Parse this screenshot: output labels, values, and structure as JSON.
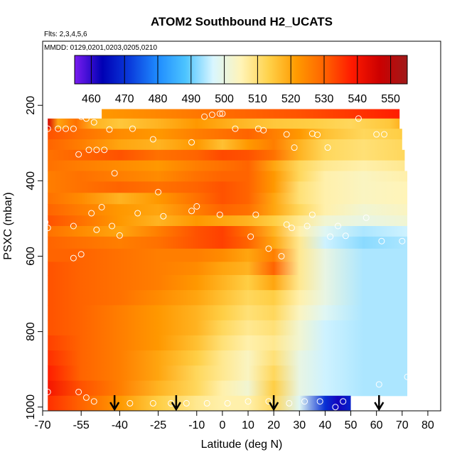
{
  "chart_data": {
    "type": "heatmap",
    "title": "ATOM2 Southbound H2_UCATS",
    "subtitle_flights": "Flts: 2,3,4,5,6",
    "subtitle_dates": "MMDD: 0129,0201,0203,0205,0210",
    "xlabel": "Latitude (deg N)",
    "ylabel": "PSXC (mbar)",
    "xlim": [
      -70,
      85
    ],
    "ylim": [
      1010,
      30
    ],
    "x_ticks": [
      -70,
      -55,
      -40,
      -25,
      -10,
      0,
      10,
      20,
      30,
      40,
      50,
      60,
      70,
      80
    ],
    "y_ticks": [
      200,
      400,
      600,
      800,
      1000
    ],
    "colorbar": {
      "min": 455,
      "max": 555,
      "ticks": [
        460,
        470,
        480,
        490,
        500,
        510,
        520,
        530,
        540,
        550
      ],
      "colors": [
        "#7a1cf0",
        "#0000b4",
        "#0a3cdc",
        "#1f8cff",
        "#4cc4ff",
        "#d9f6ff",
        "#fff4b8",
        "#ffd24a",
        "#ff9a00",
        "#ff6400",
        "#ff1a00",
        "#cc0000",
        "#a01a1a"
      ]
    },
    "arrow_latitudes": [
      -42,
      -18,
      20,
      61
    ],
    "layers": [
      {
        "p_top": 210,
        "p_bottom": 235,
        "x_start": -47,
        "x_end": 69,
        "lat": [
          -47,
          -30,
          -10,
          10,
          30,
          50,
          69
        ],
        "values": [
          522,
          524,
          527,
          530,
          532,
          535,
          538
        ]
      },
      {
        "p_top": 235,
        "p_bottom": 262,
        "x_start": -68,
        "x_end": 69,
        "lat": [
          -68,
          -64,
          -57,
          -50,
          -40,
          -25,
          -10,
          5,
          20,
          35,
          50,
          65,
          69
        ],
        "values": [
          545,
          520,
          528,
          518,
          515,
          518,
          522,
          518,
          515,
          514,
          512,
          515,
          518
        ]
      },
      {
        "p_top": 262,
        "p_bottom": 290,
        "x_start": -68,
        "x_end": 70,
        "lat": [
          -68,
          -55,
          -40,
          -25,
          -10,
          0,
          10,
          20,
          30,
          40,
          55,
          70
        ],
        "values": [
          532,
          528,
          524,
          522,
          526,
          528,
          530,
          526,
          522,
          516,
          512,
          514
        ]
      },
      {
        "p_top": 290,
        "p_bottom": 318,
        "x_start": -68,
        "x_end": 70,
        "lat": [
          -68,
          -55,
          -40,
          -25,
          -10,
          0,
          10,
          20,
          30,
          40,
          55,
          70
        ],
        "values": [
          530,
          526,
          520,
          518,
          522,
          516,
          522,
          526,
          518,
          512,
          510,
          512
        ]
      },
      {
        "p_top": 318,
        "p_bottom": 346,
        "x_start": -68,
        "x_end": 71,
        "lat": [
          -68,
          -55,
          -40,
          -25,
          -10,
          0,
          10,
          20,
          30,
          40,
          55,
          71
        ],
        "values": [
          528,
          530,
          532,
          528,
          530,
          533,
          532,
          528,
          518,
          512,
          510,
          512
        ]
      },
      {
        "p_top": 346,
        "p_bottom": 374,
        "x_start": -68,
        "x_end": 71,
        "lat": [
          -68,
          -55,
          -40,
          -25,
          -10,
          0,
          10,
          20,
          30,
          40,
          55,
          71
        ],
        "values": [
          528,
          526,
          524,
          522,
          526,
          528,
          530,
          520,
          512,
          508,
          506,
          508
        ]
      },
      {
        "p_top": 374,
        "p_bottom": 402,
        "x_start": -68,
        "x_end": 72,
        "lat": [
          -68,
          -55,
          -40,
          -25,
          -10,
          0,
          10,
          20,
          30,
          40,
          55,
          72
        ],
        "values": [
          526,
          528,
          526,
          524,
          528,
          530,
          530,
          522,
          512,
          506,
          504,
          506
        ]
      },
      {
        "p_top": 402,
        "p_bottom": 432,
        "x_start": -68,
        "x_end": 72,
        "lat": [
          -68,
          -55,
          -40,
          -25,
          -10,
          0,
          10,
          20,
          30,
          40,
          55,
          72
        ],
        "values": [
          526,
          528,
          530,
          528,
          530,
          532,
          530,
          522,
          510,
          506,
          504,
          505
        ]
      },
      {
        "p_top": 432,
        "p_bottom": 462,
        "x_start": -68,
        "x_end": 72,
        "lat": [
          -68,
          -55,
          -40,
          -25,
          -10,
          0,
          10,
          20,
          30,
          40,
          55,
          72
        ],
        "values": [
          528,
          524,
          518,
          522,
          528,
          532,
          530,
          520,
          510,
          506,
          504,
          505
        ]
      },
      {
        "p_top": 462,
        "p_bottom": 492,
        "x_start": -68,
        "x_end": 72,
        "lat": [
          -68,
          -55,
          -40,
          -25,
          -10,
          0,
          10,
          20,
          30,
          40,
          55,
          72
        ],
        "values": [
          530,
          526,
          522,
          520,
          526,
          530,
          528,
          520,
          512,
          506,
          502,
          504
        ]
      },
      {
        "p_top": 492,
        "p_bottom": 520,
        "x_start": -68,
        "x_end": 72,
        "lat": [
          -68,
          -55,
          -40,
          -25,
          -10,
          0,
          10,
          20,
          30,
          40,
          55,
          72
        ],
        "values": [
          532,
          528,
          522,
          518,
          522,
          520,
          518,
          514,
          508,
          502,
          500,
          502
        ]
      },
      {
        "p_top": 520,
        "p_bottom": 548,
        "x_start": -68,
        "x_end": 72,
        "lat": [
          -68,
          -55,
          -40,
          -25,
          -10,
          0,
          10,
          20,
          30,
          40,
          55,
          72
        ],
        "values": [
          528,
          524,
          520,
          526,
          532,
          534,
          528,
          518,
          506,
          498,
          494,
          496
        ]
      },
      {
        "p_top": 548,
        "p_bottom": 580,
        "x_start": -68,
        "x_end": 72,
        "lat": [
          -68,
          -55,
          -40,
          -25,
          -10,
          0,
          10,
          20,
          30,
          40,
          55,
          72
        ],
        "values": [
          530,
          528,
          526,
          528,
          532,
          534,
          530,
          520,
          508,
          496,
          492,
          494
        ]
      },
      {
        "p_top": 580,
        "p_bottom": 615,
        "x_start": -68,
        "x_end": 72,
        "lat": [
          -68,
          -55,
          -40,
          -25,
          -10,
          0,
          10,
          20,
          30,
          40,
          55,
          72
        ],
        "values": [
          530,
          530,
          528,
          526,
          526,
          524,
          520,
          526,
          508,
          500,
          494,
          494
        ]
      },
      {
        "p_top": 615,
        "p_bottom": 650,
        "x_start": -68,
        "x_end": 72,
        "lat": [
          -68,
          -55,
          -40,
          -25,
          -10,
          0,
          10,
          20,
          30,
          40,
          55,
          72
        ],
        "values": [
          532,
          530,
          528,
          526,
          524,
          520,
          518,
          530,
          508,
          500,
          494,
          494
        ]
      },
      {
        "p_top": 650,
        "p_bottom": 690,
        "x_start": -68,
        "x_end": 72,
        "lat": [
          -68,
          -55,
          -40,
          -25,
          -10,
          0,
          10,
          20,
          30,
          40,
          55,
          72
        ],
        "values": [
          532,
          530,
          528,
          526,
          522,
          518,
          514,
          520,
          508,
          500,
          494,
          494
        ]
      },
      {
        "p_top": 690,
        "p_bottom": 730,
        "x_start": -68,
        "x_end": 72,
        "lat": [
          -68,
          -55,
          -40,
          -25,
          -10,
          0,
          10,
          20,
          30,
          40,
          55,
          72
        ],
        "values": [
          532,
          530,
          528,
          524,
          520,
          516,
          512,
          514,
          506,
          500,
          494,
          494
        ]
      },
      {
        "p_top": 730,
        "p_bottom": 770,
        "x_start": -68,
        "x_end": 72,
        "lat": [
          -68,
          -55,
          -40,
          -25,
          -10,
          0,
          10,
          20,
          30,
          40,
          55,
          72
        ],
        "values": [
          532,
          530,
          526,
          522,
          518,
          514,
          510,
          512,
          504,
          498,
          494,
          494
        ]
      },
      {
        "p_top": 770,
        "p_bottom": 810,
        "x_start": -68,
        "x_end": 72,
        "lat": [
          -68,
          -55,
          -40,
          -25,
          -10,
          0,
          10,
          20,
          30,
          40,
          55,
          72
        ],
        "values": [
          532,
          530,
          526,
          522,
          518,
          512,
          508,
          510,
          502,
          496,
          494,
          494
        ]
      },
      {
        "p_top": 810,
        "p_bottom": 850,
        "x_start": -68,
        "x_end": 72,
        "lat": [
          -68,
          -55,
          -40,
          -25,
          -10,
          0,
          10,
          20,
          30,
          40,
          55,
          72
        ],
        "values": [
          534,
          530,
          526,
          522,
          516,
          510,
          506,
          508,
          502,
          496,
          494,
          494
        ]
      },
      {
        "p_top": 850,
        "p_bottom": 890,
        "x_start": -68,
        "x_end": 72,
        "lat": [
          -68,
          -55,
          -40,
          -25,
          -10,
          0,
          10,
          20,
          30,
          40,
          55,
          72
        ],
        "values": [
          536,
          530,
          526,
          520,
          514,
          508,
          504,
          510,
          500,
          496,
          494,
          494
        ]
      },
      {
        "p_top": 890,
        "p_bottom": 930,
        "x_start": -68,
        "x_end": 72,
        "lat": [
          -68,
          -55,
          -40,
          -25,
          -10,
          0,
          10,
          20,
          30,
          40,
          55,
          72
        ],
        "values": [
          538,
          530,
          526,
          520,
          512,
          508,
          504,
          512,
          500,
          496,
          494,
          494
        ]
      },
      {
        "p_top": 930,
        "p_bottom": 970,
        "x_start": -68,
        "x_end": 72,
        "lat": [
          -68,
          -55,
          -40,
          -25,
          -10,
          0,
          10,
          20,
          30,
          40,
          55,
          72
        ],
        "values": [
          540,
          532,
          526,
          518,
          512,
          506,
          502,
          514,
          500,
          496,
          494,
          494
        ]
      },
      {
        "p_top": 970,
        "p_bottom": 1008,
        "x_start": -68,
        "x_end": 50,
        "lat": [
          -68,
          -55,
          -40,
          -25,
          -10,
          0,
          10,
          20,
          30,
          40,
          45,
          50
        ],
        "values": [
          536,
          530,
          522,
          514,
          508,
          506,
          506,
          512,
          498,
          470,
          462,
          468
        ]
      }
    ],
    "points": [
      {
        "lat": -68,
        "p": 262
      },
      {
        "lat": -64,
        "p": 262
      },
      {
        "lat": -61,
        "p": 262
      },
      {
        "lat": -58,
        "p": 262
      },
      {
        "lat": -55,
        "p": 230
      },
      {
        "lat": -53,
        "p": 235
      },
      {
        "lat": -51,
        "p": 200
      },
      {
        "lat": -48,
        "p": 200
      },
      {
        "lat": -45,
        "p": 200
      },
      {
        "lat": -50,
        "p": 245
      },
      {
        "lat": -35,
        "p": 262
      },
      {
        "lat": -44,
        "p": 264
      },
      {
        "lat": -27,
        "p": 290
      },
      {
        "lat": -12,
        "p": 298
      },
      {
        "lat": -7,
        "p": 230
      },
      {
        "lat": -4,
        "p": 225
      },
      {
        "lat": -1,
        "p": 222
      },
      {
        "lat": 0,
        "p": 222
      },
      {
        "lat": 5,
        "p": 262
      },
      {
        "lat": 14,
        "p": 262
      },
      {
        "lat": 16,
        "p": 266
      },
      {
        "lat": 25,
        "p": 277
      },
      {
        "lat": 35,
        "p": 275
      },
      {
        "lat": 37,
        "p": 278
      },
      {
        "lat": 28,
        "p": 312
      },
      {
        "lat": 41,
        "p": 312
      },
      {
        "lat": 60,
        "p": 277
      },
      {
        "lat": 63,
        "p": 277
      },
      {
        "lat": 66,
        "p": 200
      },
      {
        "lat": 68,
        "p": 200
      },
      {
        "lat": 53,
        "p": 235
      },
      {
        "lat": -52,
        "p": 318
      },
      {
        "lat": -49,
        "p": 318
      },
      {
        "lat": -46,
        "p": 318
      },
      {
        "lat": -56,
        "p": 330
      },
      {
        "lat": -42,
        "p": 380
      },
      {
        "lat": -25,
        "p": 430
      },
      {
        "lat": -10,
        "p": 468
      },
      {
        "lat": -12,
        "p": 480
      },
      {
        "lat": -1,
        "p": 490
      },
      {
        "lat": -47,
        "p": 470
      },
      {
        "lat": -51,
        "p": 486
      },
      {
        "lat": -33,
        "p": 486
      },
      {
        "lat": -23,
        "p": 494
      },
      {
        "lat": -43,
        "p": 520
      },
      {
        "lat": -58,
        "p": 520
      },
      {
        "lat": -49,
        "p": 530
      },
      {
        "lat": -40,
        "p": 545
      },
      {
        "lat": -69,
        "p": 510
      },
      {
        "lat": -68,
        "p": 525
      },
      {
        "lat": 13,
        "p": 490
      },
      {
        "lat": 11,
        "p": 548
      },
      {
        "lat": 25,
        "p": 516
      },
      {
        "lat": 27,
        "p": 525
      },
      {
        "lat": 33,
        "p": 520
      },
      {
        "lat": 35,
        "p": 490
      },
      {
        "lat": 42,
        "p": 548
      },
      {
        "lat": 45,
        "p": 520
      },
      {
        "lat": 56,
        "p": 498
      },
      {
        "lat": 62,
        "p": 560
      },
      {
        "lat": 48,
        "p": 546
      },
      {
        "lat": 70,
        "p": 560
      },
      {
        "lat": 18,
        "p": 580
      },
      {
        "lat": 23,
        "p": 600
      },
      {
        "lat": -55,
        "p": 595
      },
      {
        "lat": -58,
        "p": 605
      },
      {
        "lat": 61,
        "p": 940
      },
      {
        "lat": 72,
        "p": 920
      },
      {
        "lat": -68,
        "p": 960
      },
      {
        "lat": -56,
        "p": 960
      },
      {
        "lat": -53,
        "p": 975
      },
      {
        "lat": -50,
        "p": 985
      },
      {
        "lat": -36,
        "p": 990
      },
      {
        "lat": -27,
        "p": 990
      },
      {
        "lat": -20,
        "p": 990
      },
      {
        "lat": -14,
        "p": 990
      },
      {
        "lat": -6,
        "p": 990
      },
      {
        "lat": 2,
        "p": 990
      },
      {
        "lat": 10,
        "p": 985
      },
      {
        "lat": 18,
        "p": 985
      },
      {
        "lat": 26,
        "p": 990
      },
      {
        "lat": 32,
        "p": 985
      },
      {
        "lat": 38,
        "p": 985
      },
      {
        "lat": 44,
        "p": 1000
      },
      {
        "lat": 47,
        "p": 985
      },
      {
        "lat": 52,
        "p": 985
      }
    ]
  }
}
